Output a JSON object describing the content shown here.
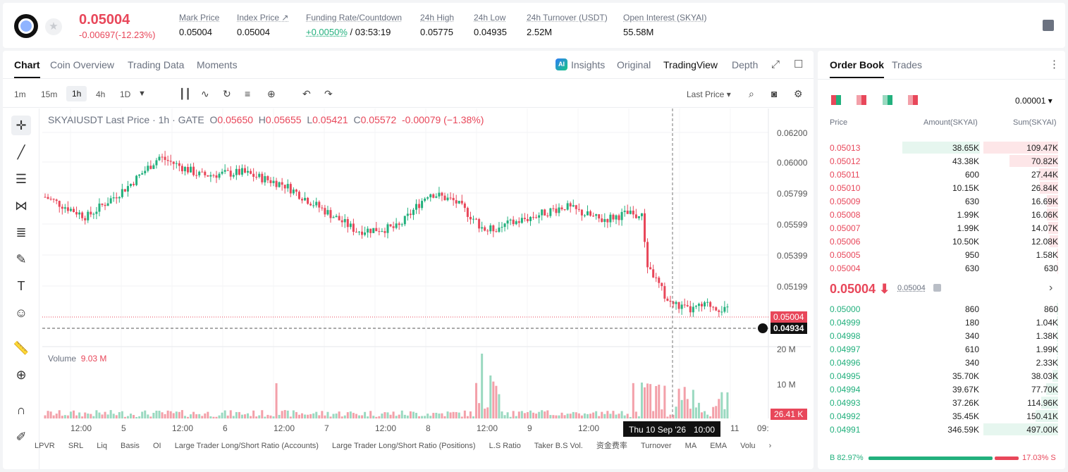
{
  "header": {
    "price": "0.05004",
    "change": "-0.00697(-12.23%)",
    "stats": [
      {
        "label": "Mark Price",
        "value": "0.05004"
      },
      {
        "label": "Index Price ↗",
        "value": "0.05004"
      },
      {
        "label": "Funding Rate/Countdown",
        "value_green": "+0.0050%",
        "value": " / 03:53:19"
      },
      {
        "label": "24h High",
        "value": "0.05775"
      },
      {
        "label": "24h Low",
        "value": "0.04935"
      },
      {
        "label": "24h Turnover (USDT)",
        "value": "2.52M"
      },
      {
        "label": "Open Interest (SKYAI)",
        "value": "55.58M"
      }
    ]
  },
  "tabs": [
    "Chart",
    "Coin Overview",
    "Trading Data",
    "Moments"
  ],
  "views": [
    "Insights",
    "Original",
    "TradingView",
    "Depth"
  ],
  "ai_badge": "AI",
  "timeframes": [
    "1m",
    "15m",
    "1h",
    "4h",
    "1D"
  ],
  "last_price_select": "Last Price ▾",
  "legend": {
    "title": "SKYAIUSDT Last Price · 1h · GATE",
    "o_label": "O",
    "o": "0.05650",
    "h_label": "H",
    "h": "0.05655",
    "l_label": "L",
    "l": "0.05421",
    "c_label": "C",
    "c": "0.05572",
    "chg": "-0.00079 (−1.38%)"
  },
  "volume": {
    "label": "Volume",
    "value": "9.03 M"
  },
  "price_axis": [
    "0.06200",
    "0.06000",
    "0.05799",
    "0.05599",
    "0.05399",
    "0.05199"
  ],
  "price_tags": {
    "last": "0.05004",
    "cursor": "0.04934"
  },
  "volume_axis": [
    "20 M",
    "10 M"
  ],
  "volume_tag": "26.41 K",
  "time_axis": [
    "12:00",
    "5",
    "12:00",
    "6",
    "12:00",
    "7",
    "12:00",
    "8",
    "12:00",
    "9",
    "12:00",
    "11",
    "09:"
  ],
  "time_cursor": {
    "date": "Thu 10 Sep '26",
    "time": "10:00"
  },
  "indicators": [
    "LPVR",
    "SRL",
    "Liq",
    "Basis",
    "OI",
    "Large Trader Long/Short Ratio (Accounts)",
    "Large Trader Long/Short Ratio (Positions)",
    "L.S Ratio",
    "Taker B.S Vol.",
    "资金费率",
    "Turnover",
    "MA",
    "EMA",
    "Volu"
  ],
  "book": {
    "tabs": [
      "Order Book",
      "Trades"
    ],
    "precision": "0.00001",
    "headers": [
      "Price",
      "Amount(SKYAI)",
      "Sum(SKYAI)"
    ],
    "asks": [
      {
        "price": "0.05013",
        "amount": "38.65K",
        "sum": "109.47K",
        "amt_frac": 0.35,
        "sum_frac": 1.0
      },
      {
        "price": "0.05012",
        "amount": "43.38K",
        "sum": "70.82K",
        "amt_frac": 0.0,
        "sum_frac": 0.65
      },
      {
        "price": "0.05011",
        "amount": "600",
        "sum": "27.44K",
        "amt_frac": 0.0,
        "sum_frac": 0.25
      },
      {
        "price": "0.05010",
        "amount": "10.15K",
        "sum": "26.84K",
        "amt_frac": 0.0,
        "sum_frac": 0.245
      },
      {
        "price": "0.05009",
        "amount": "630",
        "sum": "16.69K",
        "amt_frac": 0.0,
        "sum_frac": 0.15
      },
      {
        "price": "0.05008",
        "amount": "1.99K",
        "sum": "16.06K",
        "amt_frac": 0.0,
        "sum_frac": 0.147
      },
      {
        "price": "0.05007",
        "amount": "1.99K",
        "sum": "14.07K",
        "amt_frac": 0.0,
        "sum_frac": 0.128
      },
      {
        "price": "0.05006",
        "amount": "10.50K",
        "sum": "12.08K",
        "amt_frac": 0.0,
        "sum_frac": 0.11
      },
      {
        "price": "0.05005",
        "amount": "950",
        "sum": "1.58K",
        "amt_frac": 0.0,
        "sum_frac": 0.015
      },
      {
        "price": "0.05004",
        "amount": "630",
        "sum": "630",
        "amt_frac": 0.0,
        "sum_frac": 0.006
      }
    ],
    "mid_price": "0.05004 ⬇",
    "mid_mark": "0.05004",
    "bids": [
      {
        "price": "0.05000",
        "amount": "860",
        "sum": "860",
        "sum_frac": 0.002
      },
      {
        "price": "0.04999",
        "amount": "180",
        "sum": "1.04K",
        "sum_frac": 0.002
      },
      {
        "price": "0.04998",
        "amount": "340",
        "sum": "1.38K",
        "sum_frac": 0.003
      },
      {
        "price": "0.04997",
        "amount": "610",
        "sum": "1.99K",
        "sum_frac": 0.004
      },
      {
        "price": "0.04996",
        "amount": "340",
        "sum": "2.33K",
        "sum_frac": 0.005
      },
      {
        "price": "0.04995",
        "amount": "35.70K",
        "sum": "38.03K",
        "sum_frac": 0.077
      },
      {
        "price": "0.04994",
        "amount": "39.67K",
        "sum": "77.70K",
        "sum_frac": 0.156
      },
      {
        "price": "0.04993",
        "amount": "37.26K",
        "sum": "114.96K",
        "sum_frac": 0.231
      },
      {
        "price": "0.04992",
        "amount": "35.45K",
        "sum": "150.41K",
        "sum_frac": 0.303
      },
      {
        "price": "0.04991",
        "amount": "346.59K",
        "sum": "497.00K",
        "sum_frac": 1.0
      }
    ],
    "buy_ratio": "B  82.97%",
    "sell_ratio": "17.03%  S",
    "buy_fraction": 0.8297
  },
  "colors": {
    "up": "#22b07d",
    "down": "#e8475a"
  }
}
